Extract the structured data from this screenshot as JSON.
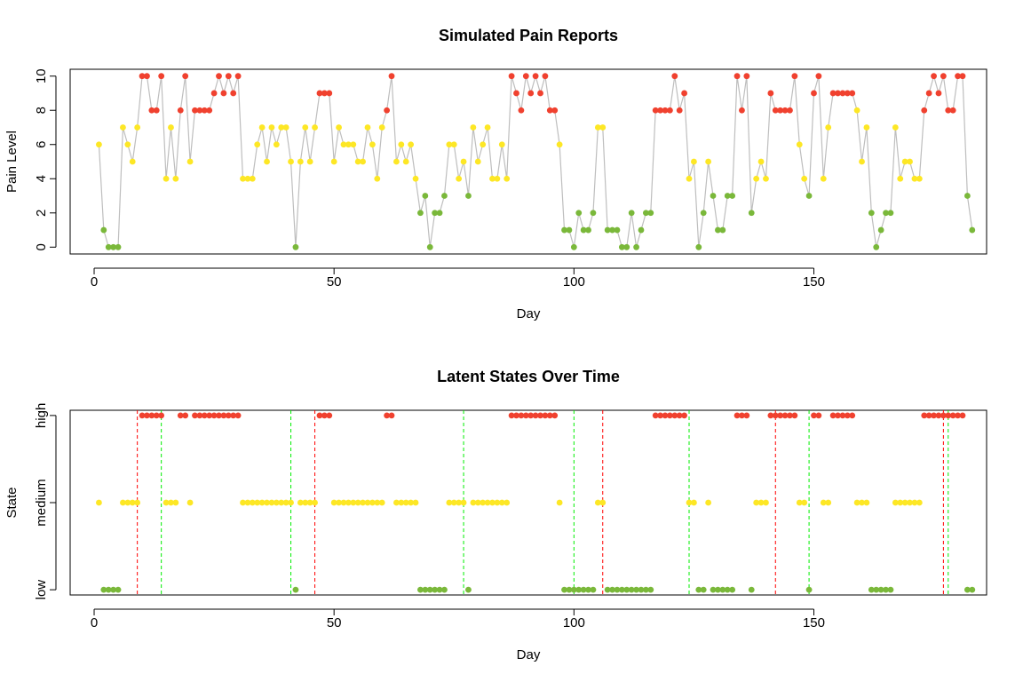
{
  "colors": {
    "high": "#F0412F",
    "medium": "#FDE725",
    "low": "#7AB83A",
    "line": "#BEBEBE",
    "up": "#FF0000",
    "down": "#00EE00"
  },
  "chart_data": [
    {
      "type": "line",
      "title": "Simulated Pain Reports",
      "xlabel": "Day",
      "ylabel": "Pain Level",
      "xlim": [
        -5,
        186
      ],
      "ylim": [
        -0.4,
        10.4
      ],
      "xticks": [
        0,
        50,
        100,
        150
      ],
      "yticks": [
        0,
        2,
        4,
        6,
        8,
        10
      ],
      "x_start": 1,
      "values": [
        6,
        1,
        0,
        0,
        0,
        7,
        6,
        5,
        7,
        10,
        10,
        8,
        8,
        10,
        4,
        7,
        4,
        8,
        10,
        5,
        8,
        8,
        8,
        8,
        9,
        10,
        9,
        10,
        9,
        10,
        4,
        4,
        4,
        6,
        7,
        5,
        7,
        6,
        7,
        7,
        5,
        0,
        5,
        7,
        5,
        7,
        9,
        9,
        9,
        5,
        7,
        6,
        6,
        6,
        5,
        5,
        7,
        6,
        4,
        7,
        8,
        10,
        5,
        6,
        5,
        6,
        4,
        2,
        3,
        0,
        2,
        2,
        3,
        6,
        6,
        4,
        5,
        3,
        7,
        5,
        6,
        7,
        4,
        4,
        6,
        4,
        10,
        9,
        8,
        10,
        9,
        10,
        9,
        10,
        8,
        8,
        6,
        1,
        1,
        0,
        2,
        1,
        1,
        2,
        7,
        7,
        1,
        1,
        1,
        0,
        0,
        2,
        0,
        1,
        2,
        2,
        8,
        8,
        8,
        8,
        10,
        8,
        9,
        4,
        5,
        0,
        2,
        5,
        3,
        1,
        1,
        3,
        3,
        10,
        8,
        10,
        2,
        4,
        5,
        4,
        9,
        8,
        8,
        8,
        8,
        10,
        6,
        4,
        3,
        9,
        10,
        4,
        7,
        9,
        9,
        9,
        9,
        9,
        8,
        5,
        7,
        2,
        0,
        1,
        2,
        2,
        7,
        4,
        5,
        5,
        4,
        4,
        8,
        9,
        10,
        9,
        10,
        8,
        8,
        10,
        10,
        3,
        1
      ],
      "states": [
        "M",
        "L",
        "L",
        "L",
        "L",
        "M",
        "M",
        "M",
        "M",
        "H",
        "H",
        "H",
        "H",
        "H",
        "M",
        "M",
        "M",
        "H",
        "H",
        "M",
        "H",
        "H",
        "H",
        "H",
        "H",
        "H",
        "H",
        "H",
        "H",
        "H",
        "M",
        "M",
        "M",
        "M",
        "M",
        "M",
        "M",
        "M",
        "M",
        "M",
        "M",
        "L",
        "M",
        "M",
        "M",
        "M",
        "H",
        "H",
        "H",
        "M",
        "M",
        "M",
        "M",
        "M",
        "M",
        "M",
        "M",
        "M",
        "M",
        "M",
        "H",
        "H",
        "M",
        "M",
        "M",
        "M",
        "M",
        "L",
        "L",
        "L",
        "L",
        "L",
        "L",
        "M",
        "M",
        "M",
        "M",
        "L",
        "M",
        "M",
        "M",
        "M",
        "M",
        "M",
        "M",
        "M",
        "H",
        "H",
        "H",
        "H",
        "H",
        "H",
        "H",
        "H",
        "H",
        "H",
        "M",
        "L",
        "L",
        "L",
        "L",
        "L",
        "L",
        "L",
        "M",
        "M",
        "L",
        "L",
        "L",
        "L",
        "L",
        "L",
        "L",
        "L",
        "L",
        "L",
        "H",
        "H",
        "H",
        "H",
        "H",
        "H",
        "H",
        "M",
        "M",
        "L",
        "L",
        "M",
        "L",
        "L",
        "L",
        "L",
        "L",
        "H",
        "H",
        "H",
        "L",
        "M",
        "M",
        "M",
        "H",
        "H",
        "H",
        "H",
        "H",
        "H",
        "M",
        "M",
        "L",
        "H",
        "H",
        "M",
        "M",
        "H",
        "H",
        "H",
        "H",
        "H",
        "M",
        "M",
        "M",
        "L",
        "L",
        "L",
        "L",
        "L",
        "M",
        "M",
        "M",
        "M",
        "M",
        "M",
        "H",
        "H",
        "H",
        "H",
        "H",
        "H",
        "H",
        "H",
        "H",
        "L",
        "L"
      ]
    },
    {
      "type": "scatter",
      "title": "Latent States Over Time",
      "xlabel": "Day",
      "ylabel": "State",
      "xlim": [
        -5,
        186
      ],
      "ylim": [
        0.94,
        3.06
      ],
      "xticks": [
        0,
        50,
        100,
        150
      ],
      "ycategories": [
        "low",
        "medium",
        "high"
      ],
      "x_start": 1,
      "same_states_as_first": true,
      "changepoints_up": [
        9,
        46,
        106,
        142,
        177
      ],
      "changepoints_down": [
        14,
        41,
        77,
        100,
        124,
        149,
        178
      ]
    }
  ]
}
